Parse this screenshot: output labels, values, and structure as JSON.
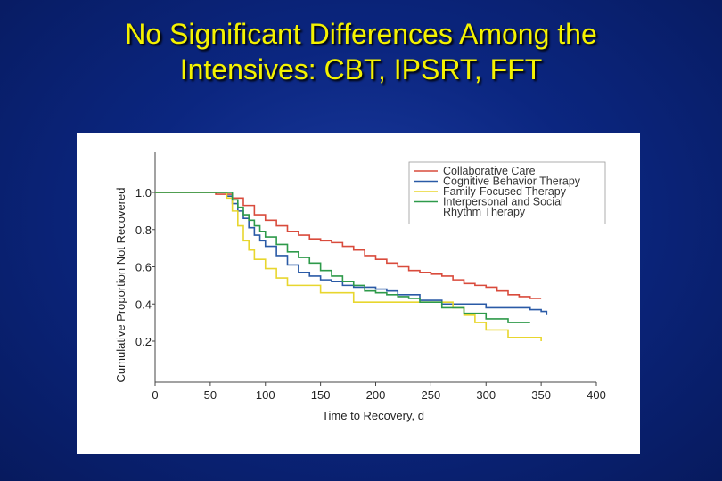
{
  "slide": {
    "title_line1": "No Significant Differences Among the",
    "title_line2": "Intensives: CBT, IPSRT, FFT",
    "background_color": "#0b2680",
    "title_color": "#f4f200"
  },
  "chart_data": {
    "type": "line",
    "step": true,
    "title": "",
    "xlabel": "Time to Recovery, d",
    "ylabel": "Cumulative Proportion Not Recovered",
    "xlim": [
      0,
      400
    ],
    "ylim": [
      0,
      1.0
    ],
    "xticks": [
      "0",
      "50",
      "100",
      "150",
      "200",
      "250",
      "300",
      "350",
      "400"
    ],
    "yticks": [
      "0.2",
      "0.4",
      "0.6",
      "0.8",
      "1.0"
    ],
    "grid": false,
    "legend_position": "top-right",
    "series": [
      {
        "name": "Collaborative Care",
        "color": "#d94b3c",
        "x": [
          0,
          55,
          70,
          80,
          90,
          100,
          110,
          120,
          130,
          140,
          150,
          160,
          170,
          180,
          190,
          200,
          210,
          220,
          230,
          240,
          250,
          260,
          270,
          280,
          290,
          300,
          310,
          320,
          330,
          340,
          350
        ],
        "y": [
          1.0,
          0.99,
          0.97,
          0.93,
          0.88,
          0.85,
          0.82,
          0.79,
          0.77,
          0.75,
          0.74,
          0.73,
          0.71,
          0.69,
          0.66,
          0.64,
          0.62,
          0.6,
          0.58,
          0.57,
          0.56,
          0.55,
          0.53,
          0.51,
          0.5,
          0.49,
          0.47,
          0.45,
          0.44,
          0.43,
          0.43
        ]
      },
      {
        "name": "Cognitive Behavior Therapy",
        "color": "#2a5aa6",
        "x": [
          0,
          65,
          70,
          75,
          80,
          85,
          90,
          95,
          100,
          110,
          120,
          130,
          140,
          150,
          160,
          170,
          180,
          190,
          200,
          210,
          220,
          240,
          260,
          300,
          340,
          350,
          355
        ],
        "y": [
          1.0,
          0.98,
          0.94,
          0.9,
          0.86,
          0.81,
          0.77,
          0.74,
          0.71,
          0.66,
          0.61,
          0.57,
          0.55,
          0.53,
          0.52,
          0.5,
          0.49,
          0.49,
          0.48,
          0.47,
          0.45,
          0.42,
          0.4,
          0.38,
          0.37,
          0.36,
          0.34
        ]
      },
      {
        "name": "Family-Focused Therapy",
        "color": "#e8d62e",
        "x": [
          0,
          65,
          70,
          75,
          80,
          85,
          90,
          100,
          110,
          120,
          140,
          150,
          170,
          180,
          220,
          240,
          270,
          280,
          290,
          300,
          320,
          350
        ],
        "y": [
          1.0,
          0.97,
          0.9,
          0.82,
          0.74,
          0.69,
          0.64,
          0.59,
          0.54,
          0.5,
          0.5,
          0.46,
          0.46,
          0.41,
          0.41,
          0.41,
          0.38,
          0.34,
          0.3,
          0.26,
          0.22,
          0.2
        ]
      },
      {
        "name": "Interpersonal and Social Rhythm Therapy",
        "color": "#2e9a4a",
        "x": [
          0,
          70,
          75,
          80,
          85,
          90,
          95,
          100,
          110,
          120,
          130,
          140,
          150,
          160,
          170,
          180,
          190,
          200,
          210,
          220,
          230,
          240,
          260,
          280,
          300,
          320,
          340
        ],
        "y": [
          1.0,
          0.96,
          0.92,
          0.88,
          0.85,
          0.82,
          0.79,
          0.76,
          0.72,
          0.68,
          0.65,
          0.62,
          0.58,
          0.55,
          0.52,
          0.5,
          0.47,
          0.46,
          0.45,
          0.44,
          0.43,
          0.41,
          0.38,
          0.35,
          0.32,
          0.3,
          0.3
        ]
      }
    ]
  }
}
